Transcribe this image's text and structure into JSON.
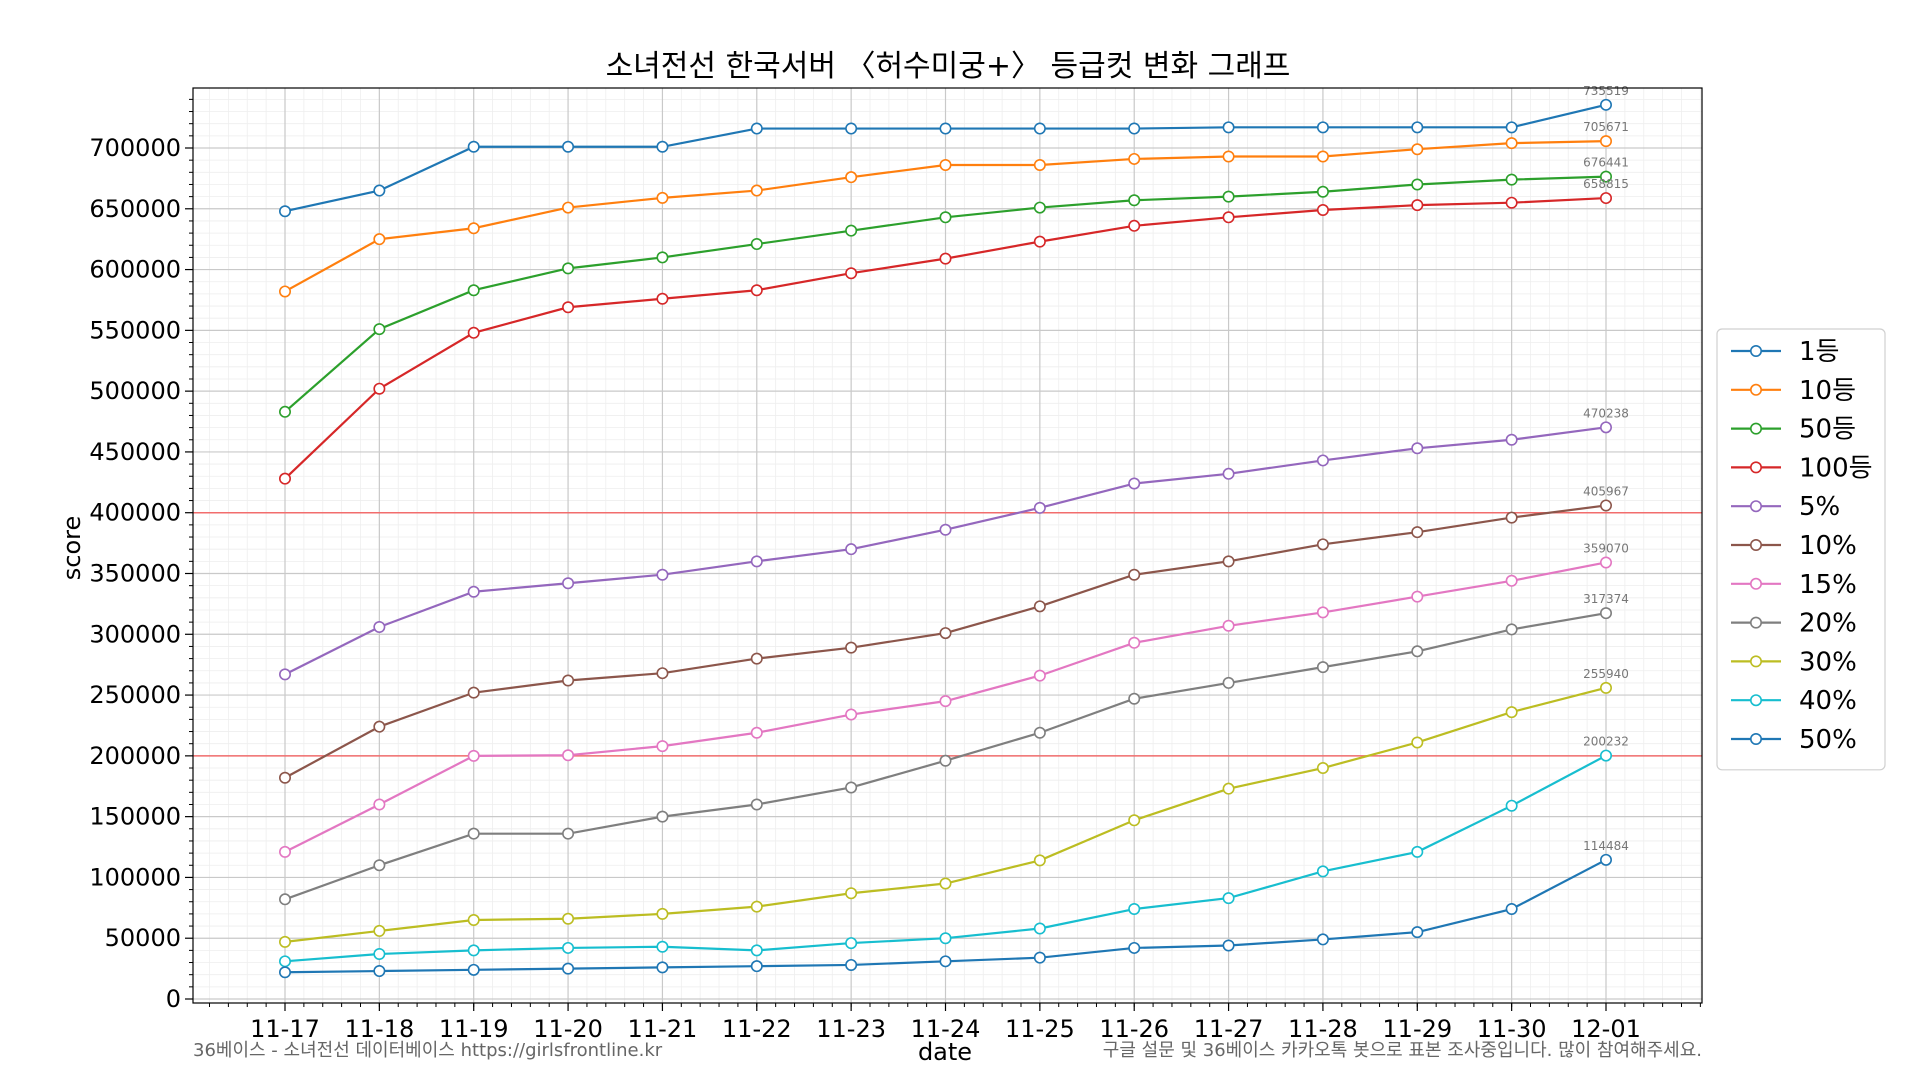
{
  "chart_data": {
    "type": "line",
    "title": "소녀전선 한국서버 〈허수미궁+〉 등급컷 변화 그래프",
    "xlabel": "date",
    "ylabel": "score",
    "x": [
      "11-17",
      "11-18",
      "11-19",
      "11-20",
      "11-21",
      "11-22",
      "11-23",
      "11-24",
      "11-25",
      "11-26",
      "11-27",
      "11-28",
      "11-29",
      "11-30",
      "12-01"
    ],
    "ylim": [
      0,
      750000
    ],
    "yticks": [
      0,
      50000,
      100000,
      150000,
      200000,
      250000,
      300000,
      350000,
      400000,
      450000,
      500000,
      550000,
      600000,
      650000,
      700000
    ],
    "ytick_labels": [
      "0",
      "50000",
      "100000",
      "150000",
      "200000",
      "250000",
      "300000",
      "350000",
      "400000",
      "450000",
      "500000",
      "550000",
      "600000",
      "650000",
      "700000"
    ],
    "grid": true,
    "legend_position": "right",
    "reference_lines": [
      {
        "y": 400000,
        "color": "#f26d6d"
      },
      {
        "y": 200000,
        "color": "#f26d6d"
      }
    ],
    "series": [
      {
        "name": "1등",
        "color": "#1f77b4",
        "end_label": "735519",
        "values": [
          648000,
          665000,
          701000,
          701000,
          701000,
          716000,
          716000,
          716000,
          716000,
          716000,
          717000,
          717000,
          717000,
          717000,
          735519
        ]
      },
      {
        "name": "10등",
        "color": "#ff7f0e",
        "end_label": "705671",
        "values": [
          582000,
          625000,
          634000,
          651000,
          659000,
          665000,
          676000,
          686000,
          686000,
          691000,
          693000,
          693000,
          699000,
          704000,
          705671
        ]
      },
      {
        "name": "50등",
        "color": "#2ca02c",
        "end_label": "676441",
        "values": [
          483000,
          551000,
          583000,
          601000,
          610000,
          621000,
          632000,
          643000,
          651000,
          657000,
          660000,
          664000,
          670000,
          674000,
          676441
        ]
      },
      {
        "name": "100등",
        "color": "#d62728",
        "end_label": "658815",
        "values": [
          428000,
          502000,
          548000,
          569000,
          576000,
          583000,
          597000,
          609000,
          623000,
          636000,
          643000,
          649000,
          653000,
          655000,
          658815
        ]
      },
      {
        "name": "5%",
        "color": "#9467bd",
        "end_label": "470238",
        "values": [
          267000,
          306000,
          335000,
          342000,
          349000,
          360000,
          370000,
          386000,
          404000,
          424000,
          432000,
          443000,
          453000,
          460000,
          470238
        ]
      },
      {
        "name": "10%",
        "color": "#8c564b",
        "end_label": "405967",
        "values": [
          182000,
          224000,
          252000,
          262000,
          268000,
          280000,
          289000,
          301000,
          323000,
          349000,
          360000,
          374000,
          384000,
          396000,
          405967
        ]
      },
      {
        "name": "15%",
        "color": "#e377c2",
        "end_label": "359070",
        "values": [
          121000,
          160000,
          200000,
          200500,
          208000,
          219000,
          234000,
          245000,
          266000,
          293000,
          307000,
          318000,
          331000,
          344000,
          359070
        ]
      },
      {
        "name": "20%",
        "color": "#7f7f7f",
        "end_label": "317374",
        "values": [
          82000,
          110000,
          136000,
          136000,
          150000,
          160000,
          174000,
          196000,
          219000,
          247000,
          260000,
          273000,
          286000,
          304000,
          317374
        ]
      },
      {
        "name": "30%",
        "color": "#bcbd22",
        "end_label": "255940",
        "values": [
          47000,
          56000,
          65000,
          66000,
          70000,
          76000,
          87000,
          95000,
          114000,
          147000,
          173000,
          190000,
          211000,
          236000,
          255940
        ]
      },
      {
        "name": "40%",
        "color": "#17becf",
        "end_label": "200232",
        "values": [
          31000,
          37000,
          40000,
          42000,
          43000,
          40000,
          46000,
          50000,
          58000,
          74000,
          83000,
          105000,
          121000,
          159000,
          200232
        ]
      },
      {
        "name": "50%",
        "color": "#1f77b4",
        "end_label": "114484",
        "values": [
          22000,
          23000,
          24000,
          25000,
          26000,
          27000,
          28000,
          31000,
          34000,
          42000,
          44000,
          49000,
          55000,
          74000,
          114484
        ]
      }
    ]
  },
  "footer": {
    "left": "36베이스 - 소녀전선 데이터베이스 https://girlsfrontline.kr",
    "right": "구글 설문 및 36베이스 카카오톡 봇으로 표본 조사중입니다. 많이 참여해주세요."
  }
}
